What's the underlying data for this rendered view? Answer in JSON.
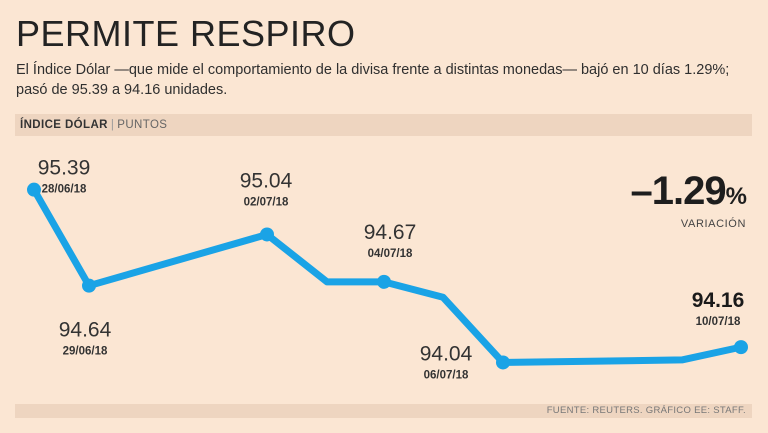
{
  "title": "PERMITE RESPIRO",
  "subtitle": "El Índice Dólar —que mide el comportamiento de la divisa frente a distintas monedas— bajó en 10 días 1.29%; pasó de 95.39 a 94.16 unidades.",
  "colors": {
    "line": "#1aa3e6",
    "background": "#fbe6d3",
    "bar": "#eed5c0"
  },
  "chart_data": {
    "type": "line",
    "ylabel": "ÍNDICE DÓLAR",
    "unit": "PUNTOS",
    "points": [
      {
        "value": 95.39,
        "label": "95.39",
        "date": "28/06/18"
      },
      {
        "value": 94.64,
        "label": "94.64",
        "date": "29/06/18"
      },
      {
        "value": 95.04,
        "label": "95.04",
        "date": "02/07/18"
      },
      {
        "value": 94.67,
        "label": "",
        "date": ""
      },
      {
        "value": 94.67,
        "label": "94.67",
        "date": "04/07/18"
      },
      {
        "value": 94.55,
        "label": "",
        "date": ""
      },
      {
        "value": 94.04,
        "label": "94.04",
        "date": "06/07/18"
      },
      {
        "value": 94.05,
        "label": "",
        "date": ""
      },
      {
        "value": 94.06,
        "label": "",
        "date": ""
      },
      {
        "value": 94.16,
        "label": "94.16",
        "date": "10/07/18"
      }
    ],
    "ylim": [
      93.95,
      95.45
    ],
    "change": {
      "value": "–1.29",
      "symbol": "%",
      "label": "VARIACIÓN"
    }
  },
  "source": "FUENTE: REUTERS. GRÁFICO EE: STAFF."
}
